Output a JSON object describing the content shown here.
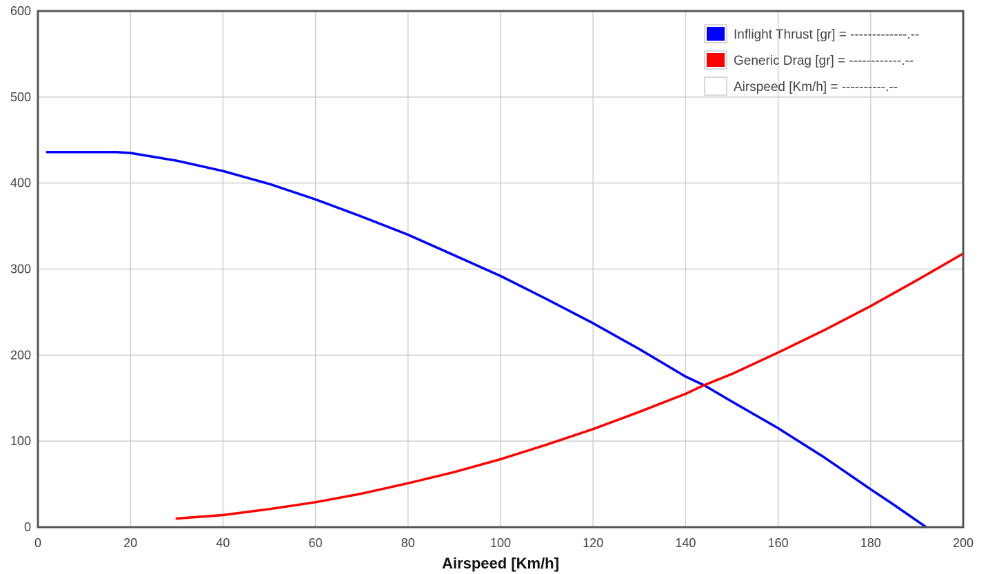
{
  "chart_data": {
    "type": "line",
    "xlabel": "Airspeed [Km/h]",
    "ylabel": "",
    "xlim": [
      0,
      200
    ],
    "ylim": [
      0,
      600
    ],
    "x_ticks": [
      0,
      20,
      40,
      60,
      80,
      100,
      120,
      140,
      160,
      180,
      200
    ],
    "y_ticks": [
      0,
      100,
      200,
      300,
      400,
      500,
      600
    ],
    "grid": true,
    "legend_position": "top-right",
    "legend": [
      {
        "label": "Inflight Thrust [gr] = -------------.--",
        "color": "#0000ff"
      },
      {
        "label": "Generic Drag [gr] = ------------.--",
        "color": "#ff0000"
      },
      {
        "label": "Airspeed [Km/h] = ----------.--",
        "color": "#ffffff"
      }
    ],
    "series": [
      {
        "color": "#0000ff",
        "points": [
          [
            2,
            436
          ],
          [
            10,
            436
          ],
          [
            17,
            436
          ],
          [
            20,
            435
          ],
          [
            30,
            426
          ],
          [
            40,
            414
          ],
          [
            50,
            399
          ],
          [
            60,
            381
          ],
          [
            70,
            361
          ],
          [
            80,
            340
          ],
          [
            90,
            316
          ],
          [
            100,
            292
          ],
          [
            110,
            265
          ],
          [
            120,
            237
          ],
          [
            130,
            207
          ],
          [
            140,
            175
          ],
          [
            144,
            165
          ],
          [
            150,
            146
          ],
          [
            160,
            115
          ],
          [
            170,
            81
          ],
          [
            180,
            44
          ],
          [
            185,
            26
          ],
          [
            192,
            0
          ]
        ]
      },
      {
        "color": "#ff0000",
        "points": [
          [
            30,
            10
          ],
          [
            40,
            14
          ],
          [
            50,
            21
          ],
          [
            60,
            29
          ],
          [
            70,
            39
          ],
          [
            80,
            51
          ],
          [
            90,
            64
          ],
          [
            100,
            79
          ],
          [
            110,
            96
          ],
          [
            120,
            114
          ],
          [
            130,
            134
          ],
          [
            140,
            155
          ],
          [
            144,
            165
          ],
          [
            150,
            178
          ],
          [
            160,
            203
          ],
          [
            170,
            229
          ],
          [
            180,
            257
          ],
          [
            190,
            287
          ],
          [
            200,
            318
          ]
        ]
      }
    ]
  }
}
